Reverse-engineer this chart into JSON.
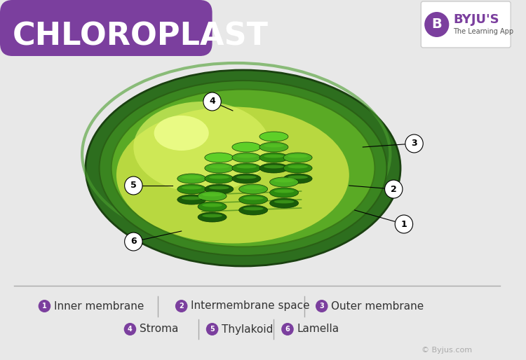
{
  "title": "CHLOROPLAST",
  "title_color": "#ffffff",
  "title_bg_color": "#7b3f9e",
  "bg_color": "#e8e8e8",
  "legend_line_color": "#cccccc",
  "purple_color": "#7b3f9e",
  "label_items_row1": [
    {
      "num": "1",
      "text": "Inner membrane"
    },
    {
      "num": "2",
      "text": "Intermembrane space"
    },
    {
      "num": "3",
      "text": "Outer membrane"
    }
  ],
  "label_items_row2": [
    {
      "num": "4",
      "text": "Stroma"
    },
    {
      "num": "5",
      "text": "Thylakoid"
    },
    {
      "num": "6",
      "text": "Lamella"
    }
  ],
  "byju_text": "BYJU'S",
  "byju_sub": "The Learning App",
  "copyright_text": "© Byjus.com",
  "outer_membrane_color": "#2d6e1e",
  "outer_membrane_light": "#4a9e2e",
  "inner_space_color": "#8ab832",
  "stroma_color": "#c8e840",
  "stroma_light": "#e0f060",
  "thylakoid_dark": "#1a5c0a",
  "thylakoid_mid": "#2d8a10",
  "thylakoid_light": "#4ab020",
  "thylakoid_top": "#5ecf28"
}
